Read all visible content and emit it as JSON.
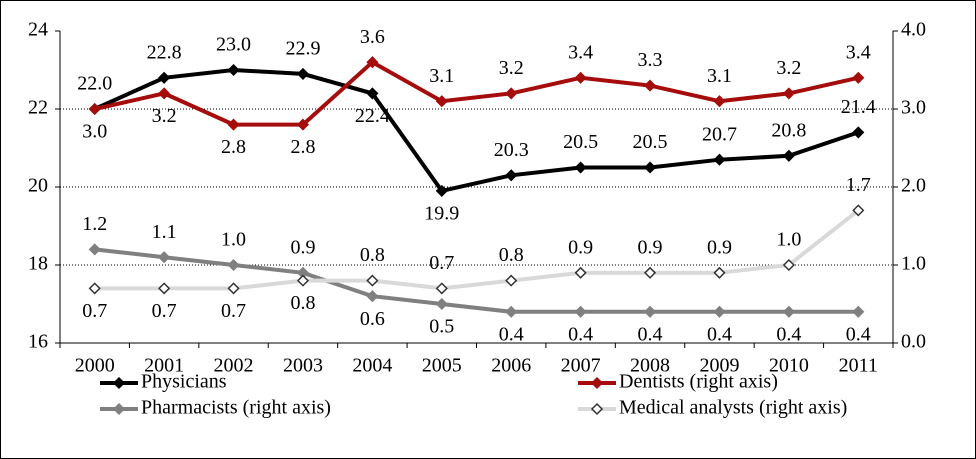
{
  "chart_data": {
    "type": "line",
    "categories": [
      "2000",
      "2001",
      "2002",
      "2003",
      "2004",
      "2005",
      "2006",
      "2007",
      "2008",
      "2009",
      "2010",
      "2011"
    ],
    "ylim": [
      16,
      24
    ],
    "yticks": [
      16,
      18,
      20,
      22,
      24
    ],
    "y2lim": [
      0,
      4
    ],
    "y2ticks": [
      {
        "value": 0,
        "label": "0.0"
      },
      {
        "value": 1,
        "label": "1.0"
      },
      {
        "value": 2,
        "label": "2.0"
      },
      {
        "value": 3,
        "label": "3.0"
      },
      {
        "value": 4,
        "label": "4.0"
      }
    ],
    "grid": true,
    "series": [
      {
        "name": "Physicians",
        "color": "#000000",
        "values": [
          22.0,
          22.8,
          23.0,
          22.9,
          22.4,
          19.9,
          20.3,
          20.5,
          20.5,
          20.7,
          20.8,
          21.4
        ],
        "value_labels": [
          "22.0",
          "22.8",
          "23.0",
          "22.9",
          "22.4",
          "19.9",
          "20.3",
          "20.5",
          "20.5",
          "20.7",
          "20.8",
          "21.4"
        ]
      },
      {
        "name": "Dentists (right axis)",
        "color": "#a50d0d",
        "axis": "y2",
        "values": [
          3.0,
          3.2,
          2.8,
          2.8,
          3.6,
          3.1,
          3.2,
          3.4,
          3.3,
          3.1,
          3.2,
          3.4
        ],
        "value_labels": [
          "3.0",
          "3.2",
          "2.8",
          "2.8",
          "3.6",
          "3.1",
          "3.2",
          "3.4",
          "3.3",
          "3.1",
          "3.2",
          "3.4"
        ]
      },
      {
        "name": "Pharmacists (right axis)",
        "color": "#808080",
        "axis": "y2",
        "values": [
          1.2,
          1.1,
          1.0,
          0.9,
          0.6,
          0.5,
          0.4,
          0.4,
          0.4,
          0.4,
          0.4,
          0.4
        ],
        "value_labels": [
          "1.2",
          "1.1",
          "1.0",
          "0.9",
          "0.6",
          "0.5",
          "0.4",
          "0.4",
          "0.4",
          "0.4",
          "0.4",
          "0.4"
        ]
      },
      {
        "name": "Medical analysts (right axis)",
        "color": "#d9d9d9",
        "axis": "y2",
        "values": [
          0.7,
          0.7,
          0.7,
          0.8,
          0.8,
          0.7,
          0.8,
          0.9,
          0.9,
          0.9,
          1.0,
          1.7
        ],
        "value_labels": [
          "0.7",
          "0.7",
          "0.7",
          "0.8",
          "0.8",
          "0.7",
          "0.8",
          "0.9",
          "0.9",
          "0.9",
          "1.0",
          "1.7"
        ]
      }
    ]
  }
}
